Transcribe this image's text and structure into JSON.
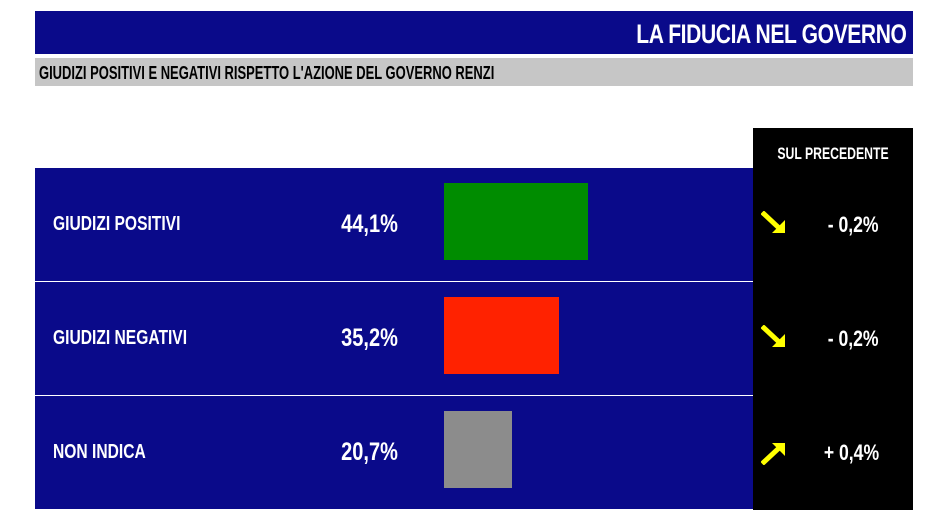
{
  "header": {
    "title": "LA FIDUCIA NEL GOVERNO"
  },
  "subheader": {
    "title": "GIUDIZI POSITIVI E NEGATIVI RISPETTO L'AZIONE DEL GOVERNO RENZI"
  },
  "column_header": "SUL PRECEDENTE",
  "colors": {
    "header_bg": "#0a0a8a",
    "row_bg": "#0a0a8a",
    "subheader_bg": "#c6c6c6",
    "arrow": "#ffff00"
  },
  "chart_data": {
    "type": "bar",
    "orientation": "horizontal",
    "title": "LA FIDUCIA NEL GOVERNO",
    "subtitle": "GIUDIZI POSITIVI E NEGATIVI RISPETTO L'AZIONE DEL GOVERNO RENZI",
    "xlim": [
      0,
      50
    ],
    "categories": [
      "GIUDIZI POSITIVI",
      "GIUDIZI NEGATIVI",
      "NON INDICA"
    ],
    "values": [
      44.1,
      35.2,
      20.7
    ],
    "value_labels": [
      "44,1%",
      "35,2%",
      "20,7%"
    ],
    "bar_colors": [
      "#008c00",
      "#ff2200",
      "#8c8c8c"
    ],
    "change_header": "SUL PRECEDENTE",
    "changes": [
      {
        "label": "- 0,2%",
        "direction": "down",
        "icon": "arrow-down-right-icon"
      },
      {
        "label": "- 0,2%",
        "direction": "down",
        "icon": "arrow-down-right-icon"
      },
      {
        "label": "+ 0,4%",
        "direction": "up",
        "icon": "arrow-up-right-icon"
      }
    ]
  }
}
